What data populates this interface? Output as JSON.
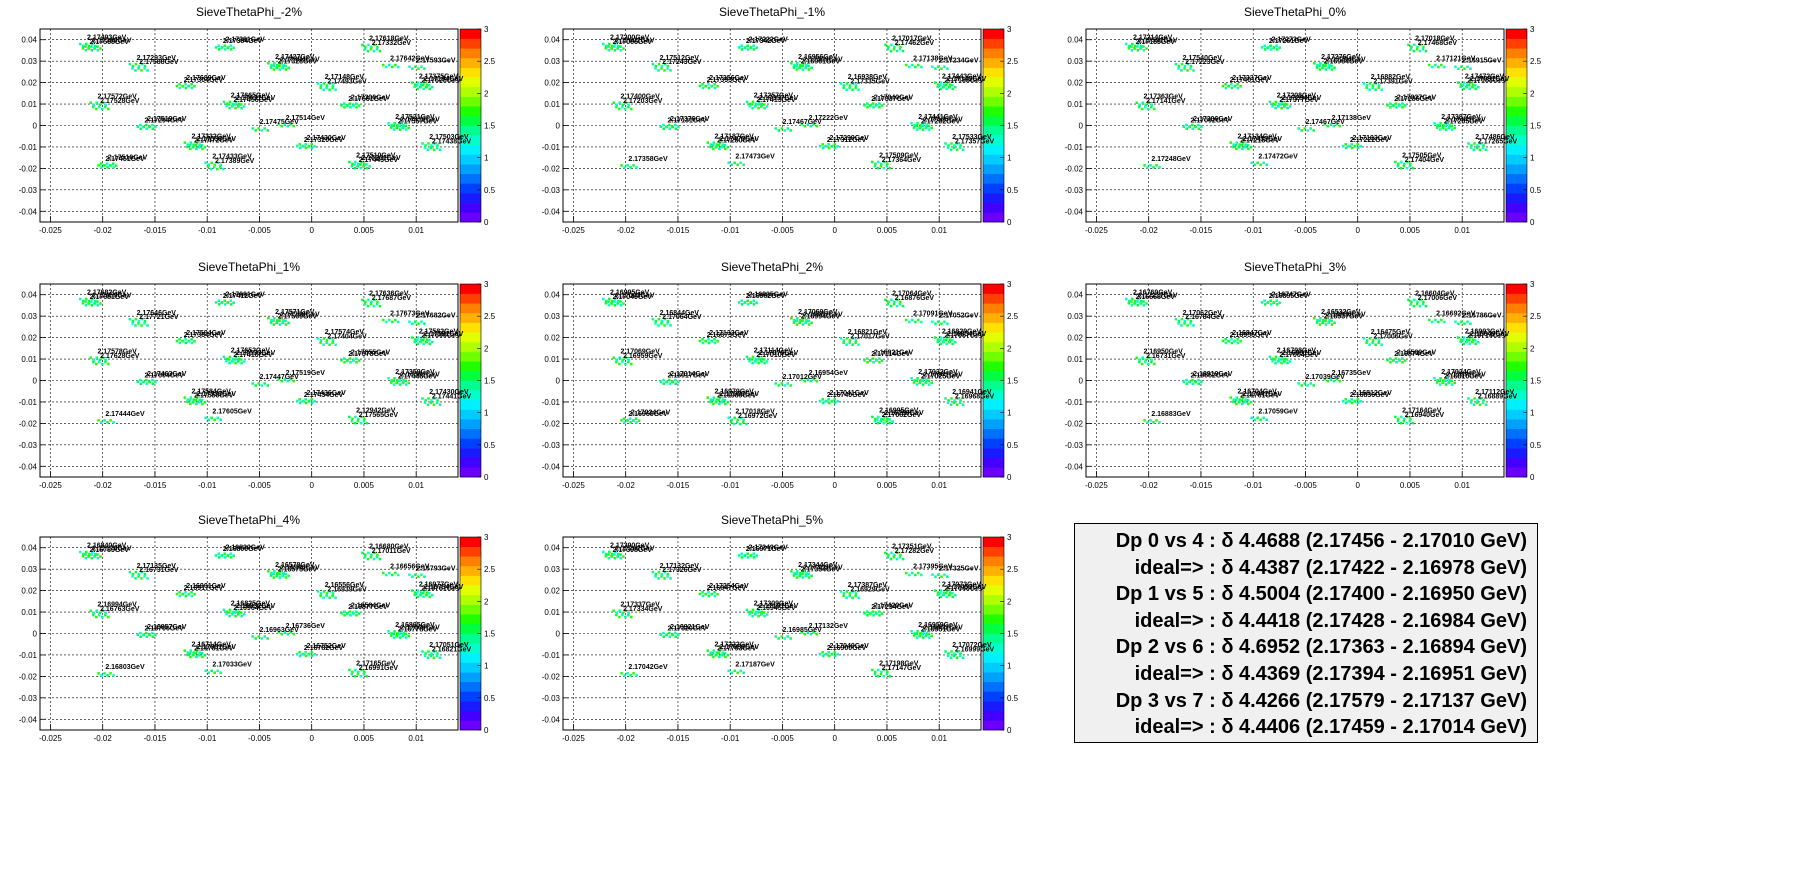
{
  "chart_data": [
    {
      "type": "scatter",
      "title": "SieveThetaPhi_-2%",
      "xlim": [
        -0.026,
        0.014
      ],
      "ylim": [
        -0.045,
        0.045
      ],
      "x_ticks": [
        "-0.025",
        "-0.02",
        "-0.015",
        "-0.01",
        "-0.005",
        "0",
        "0.005",
        "0.01"
      ],
      "y_ticks": [
        "0.04",
        "0.03",
        "0.02",
        "0.01",
        "0",
        "-0.01",
        "-0.02",
        "-0.03",
        "-0.04"
      ],
      "z_ticks": [
        "0",
        "0.5",
        "1",
        "1.5",
        "2",
        "2.5",
        "3"
      ],
      "zlim": [
        0,
        3
      ],
      "grid": true,
      "labels": [
        "2.17493GeV",
        "2.17384GeV",
        "2.17618GeV",
        "2.17565GeV",
        "2.17381GeV",
        "2.17332GeV",
        "2.17380GeV",
        "2.17427GeV",
        "2.17593GeV",
        "2.17293GeV",
        "2.17328GeV",
        "2.17642GeV",
        "2.17588GeV",
        "2.17494GeV",
        "2.17375GeV",
        "2.17304GeV",
        "2.17148GeV",
        "2.17625GeV",
        "2.17689GeV",
        "2.17493GeV",
        "2.17194GeV",
        "2.17665GeV",
        "2.17661GeV",
        "2.17572GeV",
        "2.17456GeV",
        "2.17306GeV",
        "2.17528GeV",
        "2.17631GeV",
        "2.17521GeV",
        "2.17294GeV",
        "2.17514GeV",
        "2.17557GeV",
        "2.17519GeV",
        "2.17475GeV",
        "2.17412GeV",
        "2.17332GeV",
        "2.17320GeV",
        "2.17503GeV",
        "2.17472GeV",
        "2.17430GeV",
        "2.17438GeV",
        "2.17558GeV",
        "2.17510GeV",
        "2.17451GeV",
        "2.17433GeV",
        "2.17443GeV",
        "2.17516GeV",
        "2.17389GeV",
        "2.17201GeV"
      ]
    },
    {
      "type": "scatter",
      "title": "SieveThetaPhi_-1%",
      "xlim": [
        -0.026,
        0.014
      ],
      "ylim": [
        -0.045,
        0.045
      ],
      "x_ticks": [
        "-0.025",
        "-0.02",
        "-0.015",
        "-0.01",
        "-0.005",
        "0",
        "0.005",
        "0.01"
      ],
      "y_ticks": [
        "0.04",
        "0.03",
        "0.02",
        "0.01",
        "0",
        "-0.01",
        "-0.02",
        "-0.03",
        "-0.04"
      ],
      "z_ticks": [
        "0",
        "0.5",
        "1",
        "1.5",
        "2",
        "2.5",
        "3"
      ],
      "zlim": [
        0,
        3
      ],
      "grid": true,
      "labels": [
        "2.17200GeV",
        "2.17342GeV",
        "2.17017GeV",
        "2.17066GeV",
        "2.17222GeV",
        "2.17462GeV",
        "2.17602GeV",
        "2.16956GeV",
        "2.17234GeV",
        "2.17512GeV",
        "2.16961GeV",
        "2.17138GeV",
        "2.17243GeV",
        "2.17309GeV",
        "2.17443GeV",
        "2.17393GeV",
        "2.16938GeV",
        "2.17158GeV",
        "2.17356GeV",
        "2.17335GeV",
        "2.17145GeV",
        "2.17257GeV",
        "2.17337GeV",
        "2.17400GeV",
        "2.17413GeV",
        "2.17040GeV",
        "2.17203GeV",
        "2.17357GeV",
        "2.17441GeV",
        "2.17131GeV",
        "2.17222GeV",
        "2.17292GeV",
        "2.17376GeV",
        "2.17467GeV",
        "2.17505GeV",
        "2.17187GeV",
        "2.17312GeV",
        "2.17533GeV",
        "2.17280GeV",
        "2.17299GeV",
        "2.17357GeV",
        "2.17475GeV",
        "2.17509GeV",
        "2.17358GeV",
        "2.17473GeV",
        "2.17364GeV"
      ]
    },
    {
      "type": "scatter",
      "title": "SieveThetaPhi_0%",
      "xlim": [
        -0.026,
        0.014
      ],
      "ylim": [
        -0.045,
        0.045
      ],
      "x_ticks": [
        "-0.025",
        "-0.02",
        "-0.015",
        "-0.01",
        "-0.005",
        "0",
        "0.005",
        "0.01"
      ],
      "y_ticks": [
        "0.04",
        "0.03",
        "0.02",
        "0.01",
        "0",
        "-0.01",
        "-0.02",
        "-0.03",
        "-0.04"
      ],
      "z_ticks": [
        "0",
        "0.5",
        "1",
        "1.5",
        "2",
        "2.5",
        "3"
      ],
      "zlim": [
        0,
        3
      ],
      "grid": true,
      "labels": [
        "2.17214GeV",
        "2.17261GeV",
        "2.17018GeV",
        "2.17159GeV",
        "2.17273GeV",
        "2.17468GeV",
        "2.17591GeV",
        "2.17276GeV",
        "2.16915GeV",
        "2.17540GeV",
        "2.16984GeV",
        "2.17121GeV",
        "2.17223GeV",
        "2.17294GeV",
        "2.17472GeV",
        "2.17401GeV",
        "2.16882GeV",
        "2.17153GeV",
        "2.17337GeV",
        "2.17391GeV",
        "2.17091GeV",
        "2.17208GeV",
        "2.17286GeV",
        "2.17363GeV",
        "2.17377GeV",
        "2.17037GeV",
        "2.17141GeV",
        "2.17294GeV",
        "2.17387GeV",
        "2.17092GeV",
        "2.17138GeV",
        "2.17205GeV",
        "2.17306GeV",
        "2.17467GeV",
        "2.17441GeV",
        "2.17134GeV",
        "2.17222GeV",
        "2.17486GeV",
        "2.17215GeV",
        "2.17193GeV",
        "2.17265GeV",
        "2.17435GeV",
        "2.17505GeV",
        "2.17248GeV",
        "2.17472GeV",
        "2.17404GeV"
      ]
    },
    {
      "type": "scatter",
      "title": "SieveThetaPhi_1%",
      "xlim": [
        -0.026,
        0.014
      ],
      "ylim": [
        -0.045,
        0.045
      ],
      "x_ticks": [
        "-0.025",
        "-0.02",
        "-0.015",
        "-0.01",
        "-0.005",
        "0",
        "0.005",
        "0.01"
      ],
      "y_ticks": [
        "0.04",
        "0.03",
        "0.02",
        "0.01",
        "0",
        "-0.01",
        "-0.02",
        "-0.03",
        "-0.04"
      ],
      "z_ticks": [
        "0",
        "0.5",
        "1",
        "1.5",
        "2",
        "2.5",
        "3"
      ],
      "zlim": [
        0,
        3
      ],
      "grid": true,
      "labels": [
        "2.17682GeV",
        "2.17412GeV",
        "2.17636GeV",
        "2.17681GeV",
        "2.17661GeV",
        "2.17687GeV",
        "2.17659GeV",
        "2.17571GeV",
        "2.17682GeV",
        "2.17646GeV",
        "2.17569GeV",
        "2.17673GeV",
        "2.17721GeV",
        "2.17709GeV",
        "2.17582GeV",
        "2.17384GeV",
        "2.17574GeV",
        "2.17699GeV",
        "2.17594GeV",
        "2.17404GeV",
        "2.17591GeV",
        "2.17652GeV",
        "2.17578GeV",
        "2.17578GeV",
        "2.17410GeV",
        "2.17655GeV",
        "2.17628GeV",
        "2.17533GeV",
        "2.17359GeV",
        "2.17604GeV",
        "2.17519GeV",
        "2.17448GeV",
        "2.17463GeV",
        "2.17447GeV",
        "2.17381GeV",
        "2.17584GeV",
        "2.17434GeV",
        "2.17430GeV",
        "2.17550GeV",
        "2.17436GeV",
        "2.17441GeV",
        "2.17533GeV",
        "2.12942GeV",
        "2.17444GeV",
        "2.17605GeV",
        "2.17565GeV"
      ]
    },
    {
      "type": "scatter",
      "title": "SieveThetaPhi_2%",
      "xlim": [
        -0.026,
        0.014
      ],
      "ylim": [
        -0.045,
        0.045
      ],
      "x_ticks": [
        "-0.025",
        "-0.02",
        "-0.015",
        "-0.01",
        "-0.005",
        "0",
        "0.005",
        "0.01"
      ],
      "y_ticks": [
        "0.04",
        "0.03",
        "0.02",
        "0.01",
        "0",
        "-0.01",
        "-0.02",
        "-0.03",
        "-0.04"
      ],
      "z_ticks": [
        "0",
        "0.5",
        "1",
        "1.5",
        "2",
        "2.5",
        "3"
      ],
      "zlim": [
        0,
        3
      ],
      "grid": true,
      "labels": [
        "2.16995GeV",
        "2.16962GeV",
        "2.17064GeV",
        "2.17049GeV",
        "2.16805GeV",
        "2.16876GeV",
        "2.17003GeV",
        "2.17069GeV",
        "2.17052GeV",
        "2.16844GeV",
        "2.16994GeV",
        "2.17091GeV",
        "2.17064GeV",
        "2.16987GeV",
        "2.16829GeV",
        "2.16873GeV",
        "2.16821GeV",
        "2.17057GeV",
        "2.17133GeV",
        "2.17017GeV",
        "2.16854GeV",
        "2.17114GeV",
        "2.17114GeV",
        "2.17069GeV",
        "2.17010GeV",
        "2.16921GeV",
        "2.16959GeV",
        "2.17076GeV",
        "2.17032GeV",
        "2.16917GeV",
        "2.16954GeV",
        "2.17025GeV",
        "2.17014GeV",
        "2.17012GeV",
        "2.17001GeV",
        "2.16979GeV",
        "2.16740GeV",
        "2.16941GeV",
        "2.16989GeV",
        "2.17041GeV",
        "2.16968GeV",
        "2.17003GeV",
        "2.16995GeV",
        "2.16965GeV",
        "2.17018GeV",
        "2.17062GeV",
        "2.17024GeV",
        "2.16972GeV",
        "2.16789GeV"
      ]
    },
    {
      "type": "scatter",
      "title": "SieveThetaPhi_3%",
      "xlim": [
        -0.026,
        0.014
      ],
      "ylim": [
        -0.045,
        0.045
      ],
      "x_ticks": [
        "-0.025",
        "-0.02",
        "-0.015",
        "-0.01",
        "-0.005",
        "0",
        "0.005",
        "0.01"
      ],
      "y_ticks": [
        "0.04",
        "0.03",
        "0.02",
        "0.01",
        "0",
        "-0.01",
        "-0.02",
        "-0.03",
        "-0.04"
      ],
      "z_ticks": [
        "0",
        "0.5",
        "1",
        "1.5",
        "2",
        "2.5",
        "3"
      ],
      "zlim": [
        0,
        3
      ],
      "grid": true,
      "labels": [
        "2.16769GeV",
        "2.16895GeV",
        "2.16604GeV",
        "2.16668GeV",
        "2.16747GeV",
        "2.17006GeV",
        "2.17217GeV",
        "2.16532GeV",
        "2.16786GeV",
        "2.17062GeV",
        "2.16537GeV",
        "2.16692GeV",
        "2.16784GeV",
        "2.16830GeV",
        "2.16993GeV",
        "2.16956GeV",
        "2.16475GeV",
        "2.16714GeV",
        "2.16847GeV",
        "2.17006GeV",
        "2.16649GeV",
        "2.16798GeV",
        "2.16874GeV",
        "2.16950GeV",
        "2.17004GeV",
        "2.16589GeV",
        "2.16731GeV",
        "2.16891GeV",
        "2.17024GeV",
        "2.16552GeV",
        "2.16735GeV",
        "2.16810GeV",
        "2.16919GeV",
        "2.17039GeV",
        "2.17091GeV",
        "2.16704GeV",
        "2.16836GeV",
        "2.17112GeV",
        "2.16761GeV",
        "2.16812GeV",
        "2.16889GeV",
        "2.17041GeV",
        "2.17164GeV",
        "2.16883GeV",
        "2.17059GeV",
        "2.16940GeV"
      ]
    },
    {
      "type": "scatter",
      "title": "SieveThetaPhi_4%",
      "xlim": [
        -0.026,
        0.014
      ],
      "ylim": [
        -0.045,
        0.045
      ],
      "x_ticks": [
        "-0.025",
        "-0.02",
        "-0.015",
        "-0.01",
        "-0.005",
        "0",
        "0.005",
        "0.01"
      ],
      "y_ticks": [
        "0.04",
        "0.03",
        "0.02",
        "0.01",
        "0",
        "-0.01",
        "-0.02",
        "-0.03",
        "-0.04"
      ],
      "z_ticks": [
        "0",
        "0.5",
        "1",
        "1.5",
        "2",
        "2.5",
        "3"
      ],
      "zlim": [
        0,
        3
      ],
      "grid": true,
      "labels": [
        "2.16840GeV",
        "2.16800GeV",
        "2.16680GeV",
        "2.16789GeV",
        "2.16830GeV",
        "2.17011GeV",
        "2.17170GeV",
        "2.16578GeV",
        "2.16793GeV",
        "2.17135GeV",
        "2.16575GeV",
        "2.16656GeV",
        "2.16731GeV",
        "2.16990GeV",
        "2.16977GeV",
        "2.16917GeV",
        "2.16556GeV",
        "2.16781GeV",
        "2.16901GeV",
        "2.16939GeV",
        "2.16754GeV",
        "2.16825GeV",
        "2.16877GeV",
        "2.16994GeV",
        "2.16964GeV",
        "2.16584GeV",
        "2.16763GeV",
        "2.16832GeV",
        "2.16895GeV",
        "2.16706GeV",
        "2.16736GeV",
        "2.16778GeV",
        "2.16857GeV",
        "2.16963GeV",
        "2.17009GeV",
        "2.16714GeV",
        "2.16782GeV",
        "2.17051GeV",
        "2.16781GeV",
        "2.16752GeV",
        "2.16821GeV",
        "2.17001GeV",
        "2.17165GeV",
        "2.16803GeV",
        "2.17033GeV",
        "2.16991GeV"
      ]
    },
    {
      "type": "scatter",
      "title": "SieveThetaPhi_5%",
      "xlim": [
        -0.026,
        0.014
      ],
      "ylim": [
        -0.045,
        0.045
      ],
      "x_ticks": [
        "-0.025",
        "-0.02",
        "-0.015",
        "-0.01",
        "-0.005",
        "0",
        "0.005",
        "0.01"
      ],
      "y_ticks": [
        "0.04",
        "0.03",
        "0.02",
        "0.01",
        "0",
        "-0.01",
        "-0.02",
        "-0.03",
        "-0.04"
      ],
      "z_ticks": [
        "0",
        "0.5",
        "1",
        "1.5",
        "2",
        "2.5",
        "3"
      ],
      "zlim": [
        0,
        3
      ],
      "grid": true,
      "labels": [
        "2.17390GeV",
        "2.16971GeV",
        "2.17351GeV",
        "2.17398GeV",
        "2.17249GeV",
        "2.17282GeV",
        "2.17262GeV",
        "2.17344GeV",
        "2.17325GeV",
        "2.17132GeV",
        "2.17354GeV",
        "2.17395GeV",
        "2.17326GeV",
        "2.17303GeV",
        "2.17073GeV",
        "2.16847GeV",
        "2.17387GeV",
        "2.17448GeV",
        "2.17254GeV",
        "2.16929GeV",
        "2.17453GeV",
        "2.17309GeV",
        "2.17234GeV",
        "2.17337GeV",
        "2.16945GeV",
        "2.17420GeV",
        "2.17334GeV",
        "2.17101GeV",
        "2.16959GeV",
        "2.17320GeV",
        "2.17132GeV",
        "2.16951GeV",
        "2.16921GeV",
        "2.16985GeV",
        "2.16902GeV",
        "2.17222GeV",
        "2.16900GeV",
        "2.17072GeV",
        "2.17793GeV",
        "2.17049GeV",
        "2.16999GeV",
        "2.17086GeV",
        "2.17198GeV",
        "2.17042GeV",
        "2.17187GeV",
        "2.17147GeV"
      ]
    }
  ],
  "legend": {
    "lines": [
      "Dp 0 vs 4 : δ 4.4688 (2.17456 - 2.17010 GeV)",
      "ideal=> : δ 4.4387 (2.17422 - 2.16978 GeV)",
      "Dp 1 vs 5 : δ 4.5004 (2.17400 - 2.16950 GeV)",
      "ideal=> : δ 4.4418 (2.17428 - 2.16984 GeV)",
      "Dp 2 vs 6 : δ 4.6952 (2.17363 - 2.16894 GeV)",
      "ideal=> : δ 4.4369 (2.17394 - 2.16951 GeV)",
      "Dp 3 vs 7 : δ 4.4266 (2.17579 - 2.17137 GeV)",
      "ideal=> : δ 4.4406 (2.17459 - 2.17014 GeV)"
    ]
  }
}
